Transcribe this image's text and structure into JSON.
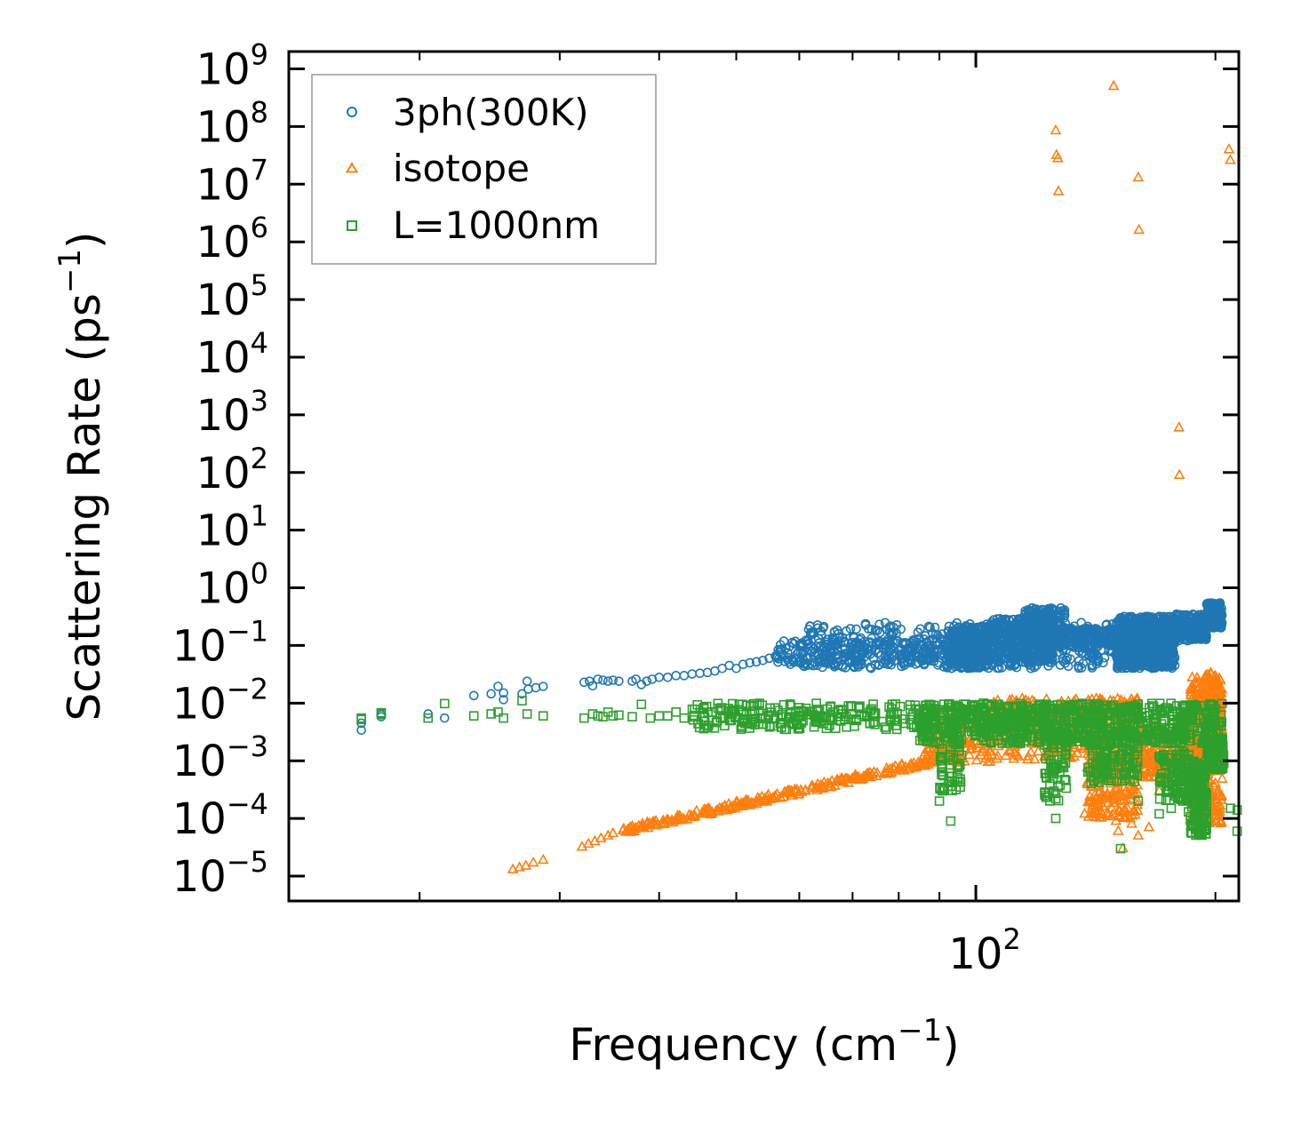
{
  "chart_data": {
    "type": "scatter",
    "xscale": "log",
    "yscale": "log",
    "xlabel": "Frequency (cm",
    "xlabel_sup": "−1",
    "xlabel_end": ")",
    "ylabel": "Scattering Rate (ps",
    "ylabel_sup": "−1",
    "ylabel_end": ")",
    "xlim": [
      13.7,
      214
    ],
    "ylim": [
      3.7e-06,
      2000000000.0
    ],
    "x_tick_labels": [
      {
        "base": "10",
        "exp": "2",
        "value": 100
      }
    ],
    "y_tick_labels": [
      {
        "base": "10",
        "exp": "9",
        "value": 1000000000.0
      },
      {
        "base": "10",
        "exp": "8",
        "value": 100000000.0
      },
      {
        "base": "10",
        "exp": "7",
        "value": 10000000.0
      },
      {
        "base": "10",
        "exp": "6",
        "value": 1000000.0
      },
      {
        "base": "10",
        "exp": "5",
        "value": 100000.0
      },
      {
        "base": "10",
        "exp": "4",
        "value": 10000.0
      },
      {
        "base": "10",
        "exp": "3",
        "value": 1000.0
      },
      {
        "base": "10",
        "exp": "2",
        "value": 100.0
      },
      {
        "base": "10",
        "exp": "1",
        "value": 10.0
      },
      {
        "base": "10",
        "exp": "0",
        "value": 1
      },
      {
        "base": "10",
        "exp": "−1",
        "value": 0.1
      },
      {
        "base": "10",
        "exp": "−2",
        "value": 0.01
      },
      {
        "base": "10",
        "exp": "−3",
        "value": 0.001
      },
      {
        "base": "10",
        "exp": "−4",
        "value": 0.0001
      },
      {
        "base": "10",
        "exp": "−5",
        "value": 1e-05
      }
    ],
    "legend_position": "top-left",
    "series": [
      {
        "name": "3ph(300K)",
        "marker": "circle",
        "color": "#1f77b4",
        "points": [
          [
            16.9,
            0.0034
          ],
          [
            16.9,
            0.0045
          ],
          [
            17.9,
            0.0058
          ],
          [
            17.9,
            0.0063
          ],
          [
            20.5,
            0.0065
          ],
          [
            21.5,
            0.0055
          ],
          [
            23.4,
            0.0135
          ],
          [
            24.6,
            0.0145
          ],
          [
            25.1,
            0.0195
          ],
          [
            25.5,
            0.015
          ],
          [
            25.5,
            0.0115
          ],
          [
            26.9,
            0.0145
          ],
          [
            27.3,
            0.024
          ],
          [
            27.4,
            0.0175
          ],
          [
            28.0,
            0.0185
          ],
          [
            28.6,
            0.0195
          ],
          [
            32.2,
            0.023
          ],
          [
            32.7,
            0.024
          ],
          [
            33.0,
            0.02
          ],
          [
            33.5,
            0.026
          ],
          [
            34.0,
            0.025
          ],
          [
            34.5,
            0.024
          ],
          [
            35.0,
            0.025
          ],
          [
            35.6,
            0.024
          ],
          [
            37.0,
            0.024
          ],
          [
            37.4,
            0.026
          ],
          [
            38.0,
            0.021
          ],
          [
            38.6,
            0.024
          ],
          [
            39.2,
            0.026
          ],
          [
            40.0,
            0.028
          ],
          [
            41.0,
            0.028
          ],
          [
            42.0,
            0.03
          ],
          [
            43.0,
            0.03
          ],
          [
            44.0,
            0.032
          ],
          [
            45.0,
            0.033
          ],
          [
            46.0,
            0.034
          ],
          [
            47.0,
            0.036
          ],
          [
            48.0,
            0.04
          ],
          [
            49.0,
            0.045
          ],
          [
            50.0,
            0.04
          ],
          [
            51.0,
            0.047
          ],
          [
            52.0,
            0.05
          ],
          [
            53.0,
            0.052
          ],
          [
            54.0,
            0.055
          ],
          [
            55.0,
            0.06
          ],
          [
            56.0,
            0.065
          ],
          [
            57.0,
            0.07
          ],
          [
            58.0,
            0.075
          ]
        ],
        "bands": [
          {
            "x": [
              56,
              98
            ],
            "y": [
              0.045,
              0.12
            ],
            "n": 260
          },
          {
            "x": [
              60,
              150
            ],
            "y": [
              0.04,
              0.25
            ],
            "n": 420
          },
          {
            "x": [
              92,
              104
            ],
            "y": [
              0.04,
              0.22
            ],
            "n": 280
          },
          {
            "x": [
              104,
              125
            ],
            "y": [
              0.05,
              0.3
            ],
            "n": 380
          },
          {
            "x": [
              115,
              130
            ],
            "y": [
              0.1,
              0.45
            ],
            "n": 200
          },
          {
            "x": [
              125,
              150
            ],
            "y": [
              0.09,
              0.2
            ],
            "n": 160
          },
          {
            "x": [
              150,
              178
            ],
            "y": [
              0.04,
              0.32
            ],
            "n": 700
          },
          {
            "x": [
              155,
              172
            ],
            "y": [
              0.06,
              0.25
            ],
            "n": 300
          },
          {
            "x": [
              178,
              195
            ],
            "y": [
              0.12,
              0.35
            ],
            "n": 200
          },
          {
            "x": [
              187,
              195
            ],
            "y": [
              0.14,
              0.25
            ],
            "n": 80
          },
          {
            "x": [
              195,
              204
            ],
            "y": [
              0.2,
              0.55
            ],
            "n": 160
          }
        ]
      },
      {
        "name": "isotope",
        "marker": "triangle",
        "color": "#ff7f0e",
        "points": [
          [
            26.2,
            1.3e-05
          ],
          [
            26.7,
            1.4e-05
          ],
          [
            27.2,
            1.5e-05
          ],
          [
            27.8,
            1.7e-05
          ],
          [
            28.6,
            1.9e-05
          ],
          [
            32.0,
            3.2e-05
          ],
          [
            32.6,
            3.6e-05
          ],
          [
            33.2,
            4e-05
          ],
          [
            33.8,
            4.5e-05
          ],
          [
            34.5,
            5e-05
          ],
          [
            35.0,
            5.5e-05
          ],
          [
            126,
            85000000.0
          ],
          [
            126.3,
            32000000.0
          ],
          [
            126.8,
            28000000.0
          ],
          [
            127,
            7500000.0
          ],
          [
            149,
            500000000.0
          ],
          [
            160,
            13000000.0
          ],
          [
            160.3,
            1600000.0
          ],
          [
            180,
            600
          ],
          [
            180.2,
            90
          ],
          [
            208,
            40000000.0
          ],
          [
            208.8,
            26000000.0
          ],
          [
            137,
            0.00012
          ],
          [
            140,
            0.00015
          ],
          [
            155,
            0.00015
          ],
          [
            156,
            0.0001
          ],
          [
            157,
            8e-05
          ],
          [
            158,
            0.00014
          ],
          [
            160,
            5e-05
          ],
          [
            165,
            7e-05
          ],
          [
            170,
            0.0003
          ],
          [
            151,
            6e-05
          ],
          [
            150,
            9e-05
          ],
          [
            153,
            3e-05
          ]
        ],
        "bands": [
          {
            "x": [
              36,
              96
            ],
            "y": [
              6e-05,
              0.0013
            ],
            "n": 280,
            "trend": "powerlaw"
          },
          {
            "x": [
              85,
              105
            ],
            "y": [
              0.0009,
              0.008
            ],
            "n": 160
          },
          {
            "x": [
              105,
              140
            ],
            "y": [
              0.001,
              0.012
            ],
            "n": 240
          },
          {
            "x": [
              138,
              160
            ],
            "y": [
              0.0001,
              0.012
            ],
            "n": 360
          },
          {
            "x": [
              160,
              186
            ],
            "y": [
              0.0005,
              0.004
            ],
            "n": 220
          },
          {
            "x": [
              186,
              204
            ],
            "y": [
              8e-05,
              0.03
            ],
            "n": 360
          },
          {
            "x": [
              195,
              203
            ],
            "y": [
              0.003,
              0.035
            ],
            "n": 120
          }
        ]
      },
      {
        "name": "L=1000nm",
        "marker": "square",
        "color": "#2ca02c",
        "points": [
          [
            16.9,
            0.0052
          ],
          [
            16.9,
            0.0055
          ],
          [
            17.9,
            0.0065
          ],
          [
            17.9,
            0.0068
          ],
          [
            20.5,
            0.0055
          ],
          [
            21.5,
            0.0098
          ],
          [
            23.4,
            0.006
          ],
          [
            24.6,
            0.0065
          ],
          [
            25.1,
            0.007
          ],
          [
            25.5,
            0.0055
          ],
          [
            26.9,
            0.011
          ],
          [
            27.3,
            0.0065
          ],
          [
            28.6,
            0.006
          ],
          [
            32.2,
            0.0055
          ],
          [
            33.0,
            0.0065
          ],
          [
            33.5,
            0.006
          ],
          [
            34.0,
            0.0058
          ],
          [
            34.5,
            0.007
          ],
          [
            35.0,
            0.006
          ],
          [
            35.6,
            0.0062
          ],
          [
            37.0,
            0.0058
          ],
          [
            38.0,
            0.0095
          ],
          [
            39.0,
            0.0055
          ],
          [
            40.0,
            0.006
          ],
          [
            41.0,
            0.006
          ],
          [
            42.0,
            0.007
          ],
          [
            43.0,
            0.0055
          ],
          [
            90,
            0.0002
          ],
          [
            93,
            9e-05
          ],
          [
            126,
            0.0001
          ],
          [
            152,
            3e-05
          ],
          [
            160,
            0.0002
          ],
          [
            170,
            0.00012
          ],
          [
            176,
            0.00015
          ],
          [
            182,
            0.0002
          ],
          [
            185,
            0.00013
          ],
          [
            209,
            0.00015
          ],
          [
            213,
            0.00014
          ],
          [
            213,
            6e-05
          ],
          [
            188,
            0.0002
          ]
        ],
        "bands": [
          {
            "x": [
              44,
              96
            ],
            "y": [
              0.0035,
              0.01
            ],
            "n": 260
          },
          {
            "x": [
              85,
              204
            ],
            "y": [
              0.002,
              0.01
            ],
            "n": 900
          },
          {
            "x": [
              90,
              96
            ],
            "y": [
              0.0003,
              0.002
            ],
            "n": 50
          },
          {
            "x": [
              122,
              130
            ],
            "y": [
              0.0002,
              0.002
            ],
            "n": 60
          },
          {
            "x": [
              138,
              160
            ],
            "y": [
              0.0004,
              0.002
            ],
            "n": 110
          },
          {
            "x": [
              170,
              186
            ],
            "y": [
              0.0002,
              0.0015
            ],
            "n": 100
          },
          {
            "x": [
              186,
              195
            ],
            "y": [
              5e-05,
              0.001
            ],
            "n": 160
          },
          {
            "x": [
              195,
              205
            ],
            "y": [
              0.0007,
              0.0025
            ],
            "n": 120
          }
        ]
      }
    ]
  }
}
